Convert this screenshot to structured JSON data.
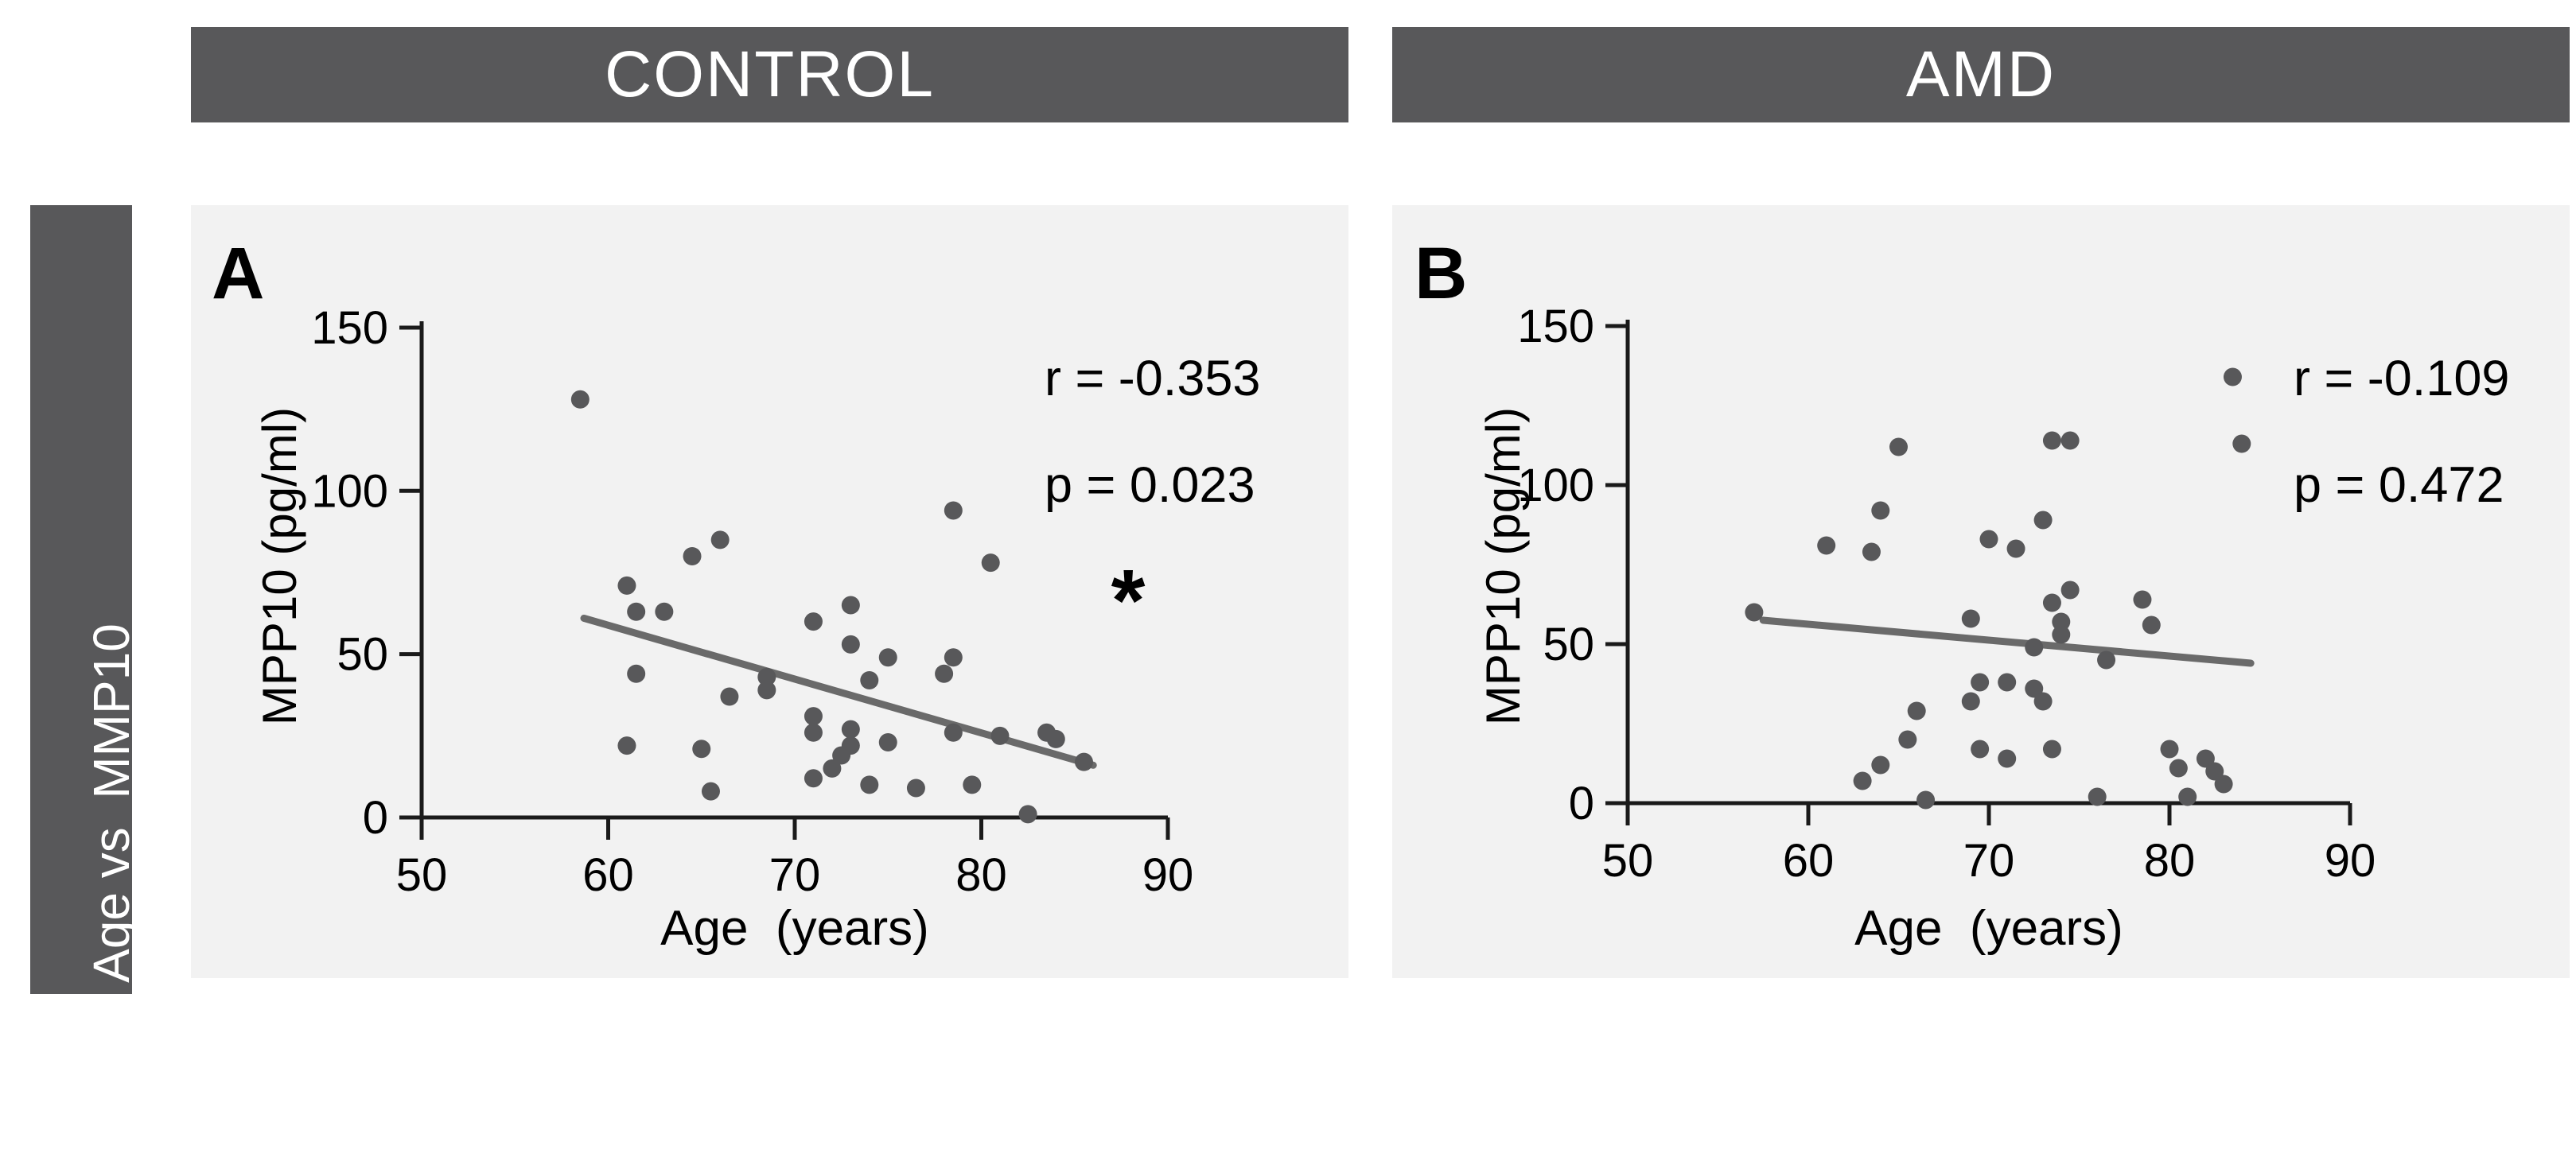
{
  "banners": {
    "control": "CONTROL",
    "amd": "AMD",
    "background": "#58585a",
    "text_color": "#ffffff"
  },
  "sidebar": {
    "label": "Age vs  MMP10",
    "background": "#58585a",
    "text_color": "#ffffff"
  },
  "panel_background": "#f2f2f2",
  "chart_data": [
    {
      "type": "scatter",
      "panel_letter": "A",
      "group": "CONTROL",
      "xlabel": "Age  (years)",
      "ylabel": "MPP10 (pg/ml)",
      "xlim": [
        50,
        90
      ],
      "ylim": [
        0,
        150
      ],
      "xticks": [
        50,
        60,
        70,
        80,
        90
      ],
      "yticks": [
        0,
        50,
        100,
        150
      ],
      "grid": false,
      "annotation": {
        "r": "r = -0.353",
        "p": "p = 0.023",
        "significance": "*"
      },
      "point_color": "#58585a",
      "trend_color": "#6a6a6a",
      "points": [
        [
          58.5,
          128
        ],
        [
          61,
          71
        ],
        [
          61.5,
          63
        ],
        [
          63,
          63
        ],
        [
          64.5,
          80
        ],
        [
          66,
          85
        ],
        [
          61.5,
          44
        ],
        [
          66.5,
          37
        ],
        [
          61,
          22
        ],
        [
          65,
          21
        ],
        [
          65.5,
          8
        ],
        [
          68.5,
          43
        ],
        [
          68.5,
          39
        ],
        [
          71,
          60
        ],
        [
          71,
          31
        ],
        [
          71,
          26
        ],
        [
          71,
          12
        ],
        [
          72,
          15
        ],
        [
          72.5,
          19
        ],
        [
          73,
          65
        ],
        [
          73,
          53
        ],
        [
          73,
          27
        ],
        [
          73,
          22
        ],
        [
          74,
          42
        ],
        [
          74,
          10
        ],
        [
          75,
          49
        ],
        [
          75,
          23
        ],
        [
          76.5,
          9
        ],
        [
          78,
          44
        ],
        [
          78.5,
          49
        ],
        [
          78.5,
          94
        ],
        [
          78.5,
          26
        ],
        [
          79.5,
          10
        ],
        [
          80.5,
          78
        ],
        [
          81,
          25
        ],
        [
          82.5,
          1
        ],
        [
          83.5,
          26
        ],
        [
          84,
          24
        ],
        [
          85.5,
          17
        ]
      ],
      "trendline": {
        "x": [
          58.7,
          86
        ],
        "y": [
          61,
          16
        ]
      }
    },
    {
      "type": "scatter",
      "panel_letter": "B",
      "group": "AMD",
      "xlabel": "Age  (years)",
      "ylabel": "MPP10 (pg/ml)",
      "xlim": [
        50,
        90
      ],
      "ylim": [
        0,
        150
      ],
      "xticks": [
        50,
        60,
        70,
        80,
        90
      ],
      "yticks": [
        0,
        50,
        100,
        150
      ],
      "grid": false,
      "annotation": {
        "r": "r = -0.109",
        "p": "p = 0.472",
        "significance": ""
      },
      "point_color": "#58585a",
      "trend_color": "#6a6a6a",
      "points": [
        [
          57,
          60
        ],
        [
          61,
          81
        ],
        [
          63.5,
          79
        ],
        [
          64,
          92
        ],
        [
          65,
          112
        ],
        [
          73.5,
          114
        ],
        [
          74.5,
          114
        ],
        [
          73,
          89
        ],
        [
          70,
          83
        ],
        [
          71.5,
          80
        ],
        [
          83.5,
          134
        ],
        [
          84,
          113
        ],
        [
          69,
          58
        ],
        [
          73.5,
          63
        ],
        [
          74,
          57
        ],
        [
          74.5,
          67
        ],
        [
          78.5,
          64
        ],
        [
          79,
          56
        ],
        [
          72.5,
          49
        ],
        [
          74,
          53
        ],
        [
          76.5,
          45
        ],
        [
          69.5,
          38
        ],
        [
          71,
          38
        ],
        [
          69,
          32
        ],
        [
          72.5,
          36
        ],
        [
          73,
          32
        ],
        [
          66,
          29
        ],
        [
          65.5,
          20
        ],
        [
          64,
          12
        ],
        [
          63,
          7
        ],
        [
          69.5,
          17
        ],
        [
          73.5,
          17
        ],
        [
          71,
          14
        ],
        [
          66.5,
          1
        ],
        [
          76,
          2
        ],
        [
          80,
          17
        ],
        [
          80.5,
          11
        ],
        [
          82,
          14
        ],
        [
          82.5,
          10
        ],
        [
          83,
          6
        ],
        [
          81,
          2
        ]
      ],
      "trendline": {
        "x": [
          57.5,
          84.5
        ],
        "y": [
          57.5,
          44
        ]
      }
    }
  ]
}
